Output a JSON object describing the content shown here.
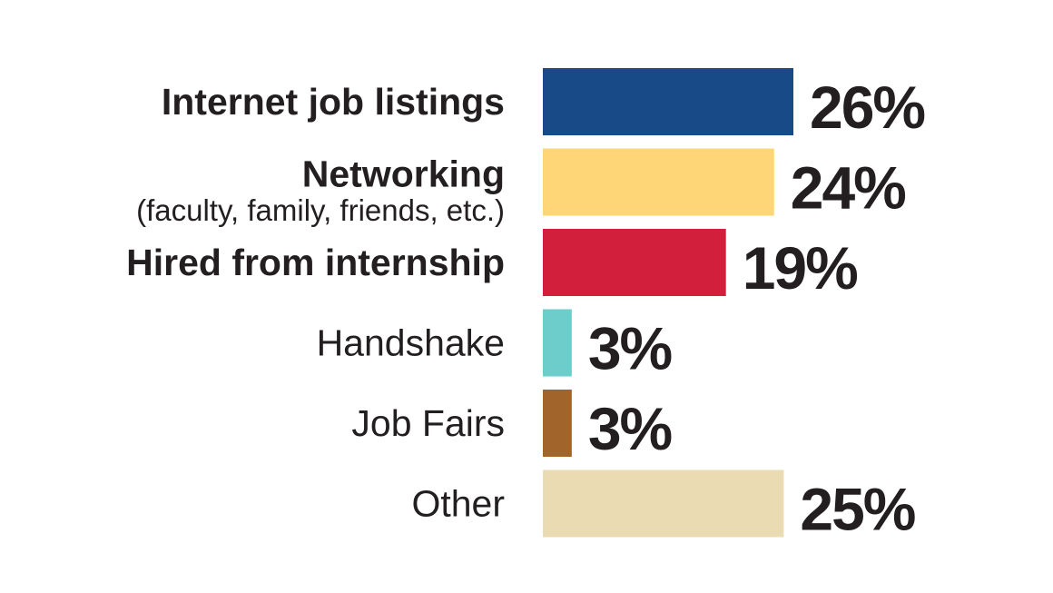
{
  "chart_data": {
    "type": "bar",
    "orientation": "horizontal",
    "categories": [
      {
        "label": "Internet job listings",
        "sublabel": "",
        "bold": true
      },
      {
        "label": "Networking",
        "sublabel": "(faculty, family, friends, etc.)",
        "bold": true
      },
      {
        "label": "Hired from internship",
        "sublabel": "",
        "bold": true
      },
      {
        "label": "Handshake",
        "sublabel": "",
        "bold": false
      },
      {
        "label": "Job Fairs",
        "sublabel": "",
        "bold": false
      },
      {
        "label": "Other",
        "sublabel": "",
        "bold": false
      }
    ],
    "values": [
      26,
      24,
      19,
      3,
      3,
      25
    ],
    "value_labels": [
      "26%",
      "24%",
      "19%",
      "3%",
      "3%",
      "25%"
    ],
    "colors": [
      "#174a86",
      "#fed677",
      "#d21f3c",
      "#6ccdca",
      "#a1642a",
      "#ebdbb2"
    ],
    "unit": "%",
    "xlim": [
      0,
      26
    ],
    "grid": false,
    "legend": "none"
  }
}
